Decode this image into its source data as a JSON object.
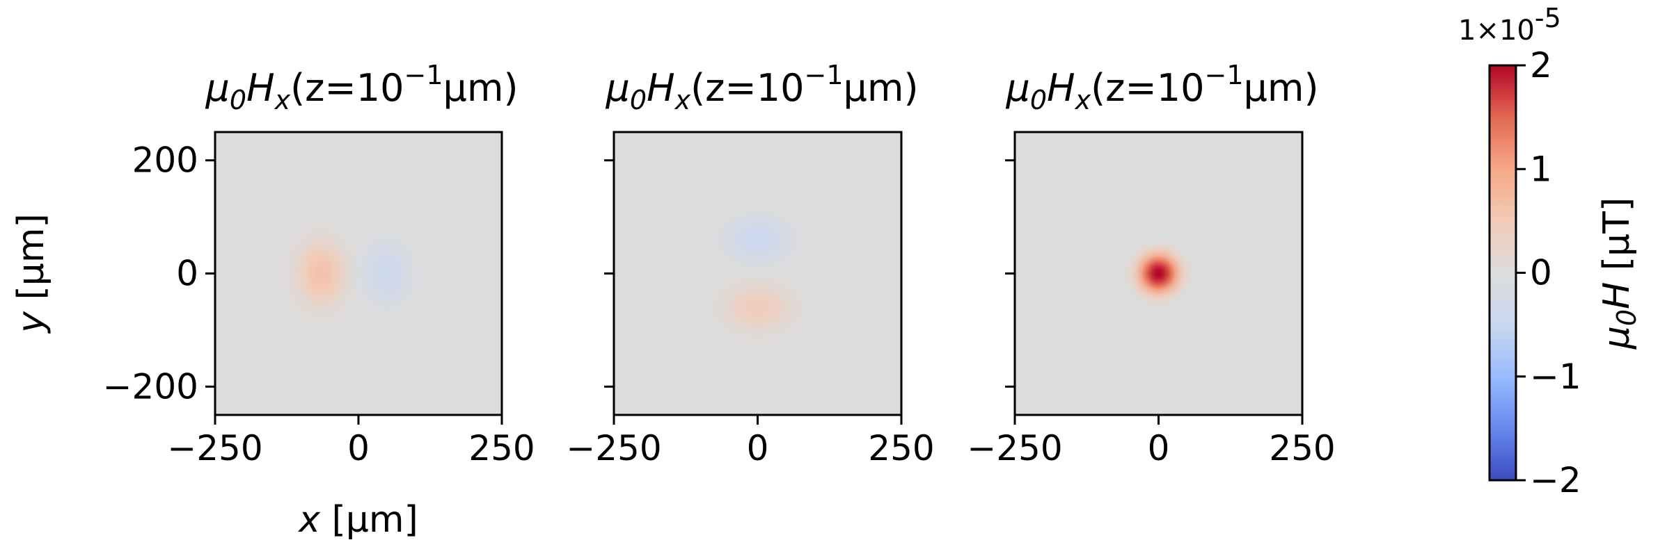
{
  "chart_data": [
    {
      "type": "heatmap",
      "title": {
        "prefix": "μ",
        "sub1": "0",
        "main": "H",
        "sub2": "x",
        "mid": "(z=10",
        "sup": "−1",
        "suffix": "μm)"
      },
      "xlabel": "x [μm]",
      "ylabel": "y [μm]",
      "xlim": [
        -250,
        250
      ],
      "ylim": [
        -250,
        250
      ],
      "xticks": [
        {
          "value": -250,
          "label": "−250"
        },
        {
          "value": 0,
          "label": "0"
        },
        {
          "value": 250,
          "label": "250"
        }
      ],
      "yticks": [
        {
          "value": 200,
          "label": "200"
        },
        {
          "value": 0,
          "label": "0"
        },
        {
          "value": -200,
          "label": "−200"
        }
      ],
      "features": [
        {
          "x": -65,
          "y": 0,
          "value": 0.65,
          "sx": 45,
          "sy": 60
        },
        {
          "x": 50,
          "y": 0,
          "value": -0.4,
          "sx": 45,
          "sy": 60
        }
      ]
    },
    {
      "type": "heatmap",
      "title": {
        "prefix": "μ",
        "sub1": "0",
        "main": "H",
        "sub2": "x",
        "mid": "(z=10",
        "sup": "−1",
        "suffix": "μm)"
      },
      "xlim": [
        -250,
        250
      ],
      "ylim": [
        -250,
        250
      ],
      "xticks": [
        {
          "value": -250,
          "label": "−250"
        },
        {
          "value": 0,
          "label": "0"
        },
        {
          "value": 250,
          "label": "250"
        }
      ],
      "yticks": [
        {
          "value": 200,
          "label": ""
        },
        {
          "value": 0,
          "label": ""
        },
        {
          "value": -200,
          "label": ""
        }
      ],
      "features": [
        {
          "x": 0,
          "y": 60,
          "value": -0.45,
          "sx": 60,
          "sy": 42
        },
        {
          "x": 0,
          "y": -60,
          "value": 0.45,
          "sx": 60,
          "sy": 42
        }
      ]
    },
    {
      "type": "heatmap",
      "title": {
        "prefix": "μ",
        "sub1": "0",
        "main": "H",
        "sub2": "x",
        "mid": "(z=10",
        "sup": "−1",
        "suffix": "μm)"
      },
      "xlim": [
        -250,
        250
      ],
      "ylim": [
        -250,
        250
      ],
      "xticks": [
        {
          "value": -250,
          "label": "−250"
        },
        {
          "value": 0,
          "label": "0"
        },
        {
          "value": 250,
          "label": "250"
        }
      ],
      "yticks": [
        {
          "value": 200,
          "label": ""
        },
        {
          "value": 0,
          "label": ""
        },
        {
          "value": -200,
          "label": ""
        }
      ],
      "features": [
        {
          "x": 0,
          "y": 0,
          "value": 2.0,
          "sx": 38,
          "sy": 38
        }
      ]
    }
  ],
  "colorbar": {
    "range": [
      -2,
      2
    ],
    "multiplier": "1×10",
    "exponent": "-5",
    "ticks": [
      {
        "value": 2,
        "label": "2"
      },
      {
        "value": 1,
        "label": "1"
      },
      {
        "value": 0,
        "label": "0"
      },
      {
        "value": -1,
        "label": "−1"
      },
      {
        "value": -2,
        "label": "−2"
      }
    ],
    "label": {
      "prefix": "μ",
      "sub": "0",
      "main": "H",
      "suffix": " [μT]"
    },
    "colormap": "coolwarm",
    "colors": [
      "#3b4cc0",
      "#6788ee",
      "#9abbff",
      "#c9d7f0",
      "#dddcdc",
      "#f2cbb7",
      "#f7a889",
      "#e26952",
      "#b40426"
    ]
  }
}
